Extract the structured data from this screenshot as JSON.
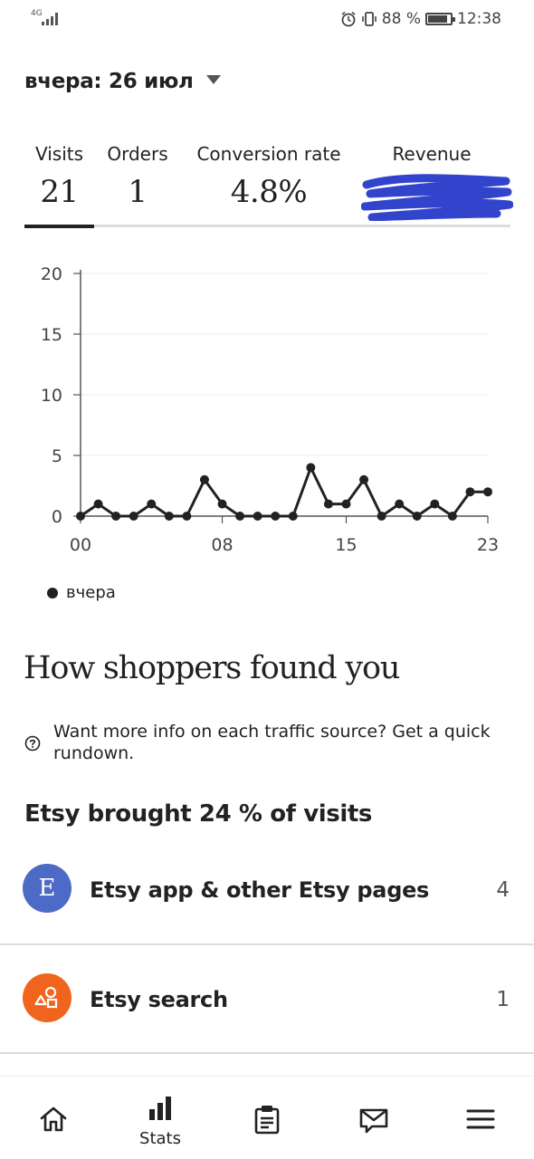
{
  "status_bar": {
    "network": "4G",
    "battery_percent": "88 %",
    "battery_level": 0.88,
    "time": "12:38"
  },
  "date_selector": {
    "label": "вчера: 26 июл"
  },
  "metrics": [
    {
      "label": "Visits",
      "value": "21"
    },
    {
      "label": "Orders",
      "value": "1"
    },
    {
      "label": "Conversion rate",
      "value": "4.8%"
    },
    {
      "label": "Revenue",
      "value": ""
    }
  ],
  "chart_data": {
    "type": "line",
    "x": [
      0,
      1,
      2,
      3,
      4,
      5,
      6,
      7,
      8,
      9,
      10,
      11,
      12,
      13,
      14,
      15,
      16,
      17,
      18,
      19,
      20,
      21,
      22,
      23
    ],
    "series": [
      {
        "name": "вчера",
        "values": [
          0,
          1,
          0,
          0,
          1,
          0,
          0,
          3,
          1,
          0,
          0,
          0,
          0,
          4,
          1,
          1,
          3,
          0,
          1,
          0,
          1,
          0,
          2,
          2
        ]
      }
    ],
    "x_tick_labels": [
      "00",
      "08",
      "15",
      "23"
    ],
    "x_tick_positions": [
      0,
      8,
      15,
      23
    ],
    "y_ticks": [
      0,
      5,
      10,
      15,
      20
    ],
    "ylim": [
      0,
      20
    ],
    "xlim": [
      0,
      23
    ],
    "grid": true,
    "legend_position": "bottom-left",
    "color": "#222222"
  },
  "section": {
    "title": "How shoppers found you",
    "info_text": "Want more info on each traffic source? Get a quick rundown.",
    "subtitle": "Etsy brought 24 % of visits"
  },
  "sources": [
    {
      "icon": "etsy-e-icon",
      "icon_letter": "E",
      "color": "#4d6bc6",
      "label": "Etsy app & other Etsy pages",
      "count": "4"
    },
    {
      "icon": "shapes-icon",
      "color": "#f1641e",
      "label": "Etsy search",
      "count": "1"
    }
  ],
  "bottom_nav": [
    {
      "icon": "home-icon",
      "label": ""
    },
    {
      "icon": "stats-icon",
      "label": "Stats"
    },
    {
      "icon": "orders-clipboard-icon",
      "label": ""
    },
    {
      "icon": "messages-envelope-icon",
      "label": ""
    },
    {
      "icon": "menu-icon",
      "label": ""
    }
  ]
}
